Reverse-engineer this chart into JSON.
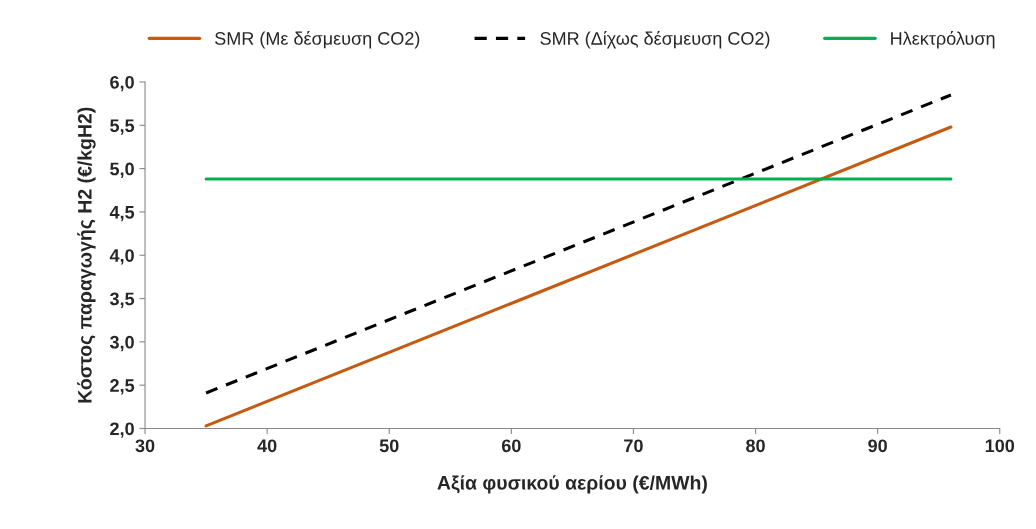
{
  "chart_data": {
    "type": "line",
    "xlabel": "Αξία φυσικού αερίου (€/MWh)",
    "ylabel": "Κόστος παραγωγής H2 (€/kgH2)",
    "x": [
      35,
      96
    ],
    "series": [
      {
        "name": "SMR (Με δέσμευση CO2)",
        "color": "#c55a11",
        "values": [
          2.03,
          5.48
        ],
        "line_style": "solid"
      },
      {
        "name": "SMR (Δίχως δέσμευση CO2)",
        "color": "#000000",
        "values": [
          2.41,
          5.85
        ],
        "line_style": "dashed"
      },
      {
        "name": "Ηλεκτρόλυση",
        "color": "#00b050",
        "values": [
          4.88,
          4.88
        ],
        "line_style": "solid"
      }
    ],
    "xlim": [
      30,
      100
    ],
    "xticks": [
      30,
      40,
      50,
      60,
      70,
      80,
      90,
      100
    ],
    "ylim": [
      2.0,
      6.0
    ],
    "yticks": [
      {
        "value": 2.0,
        "label": "2,0"
      },
      {
        "value": 2.5,
        "label": "2,5"
      },
      {
        "value": 3.0,
        "label": "3,0"
      },
      {
        "value": 3.5,
        "label": "3,5"
      },
      {
        "value": 4.0,
        "label": "4,0"
      },
      {
        "value": 4.5,
        "label": "4,5"
      },
      {
        "value": 5.0,
        "label": "5,0"
      },
      {
        "value": 5.5,
        "label": "5,5"
      },
      {
        "value": 6.0,
        "label": "6,0"
      }
    ],
    "grid": false,
    "legend": "top",
    "marker": "none"
  }
}
